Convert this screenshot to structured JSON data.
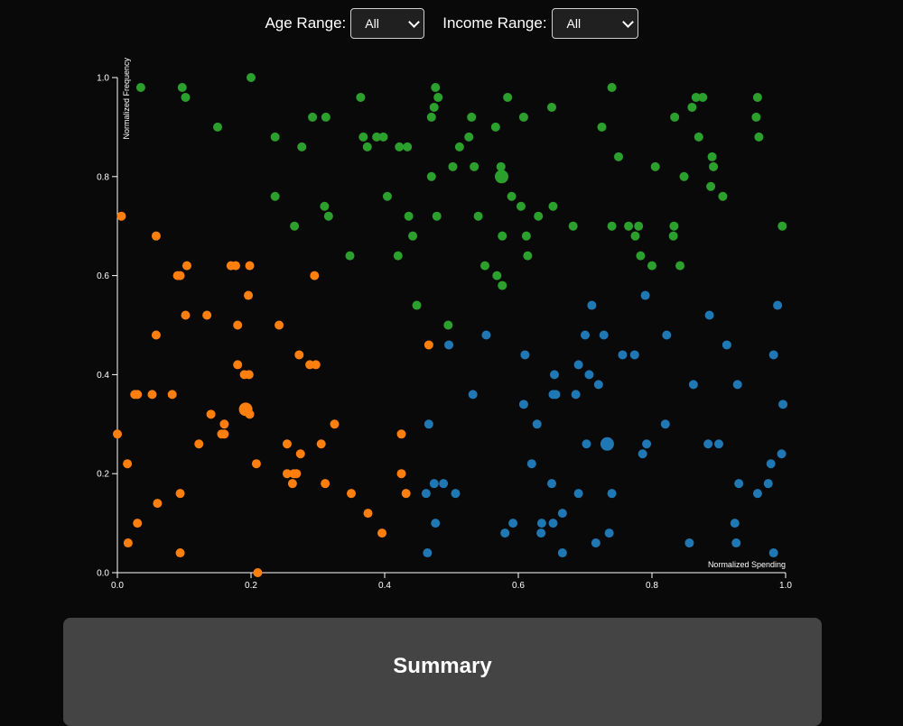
{
  "filters": {
    "age": {
      "label": "Age Range:",
      "selected": "All"
    },
    "income": {
      "label": "Income Range:",
      "selected": "All"
    }
  },
  "summary": {
    "title": "Summary"
  },
  "chart_data": {
    "type": "scatter",
    "xlabel": "Normalized Spending",
    "ylabel": "Normalized Frequency",
    "xlim": [
      0,
      1
    ],
    "ylim": [
      0,
      1
    ],
    "x_ticks": [
      "0.0",
      "0.2",
      "0.4",
      "0.6",
      "0.8",
      "1.0"
    ],
    "y_ticks": [
      "0.0",
      "0.2",
      "0.4",
      "0.6",
      "0.8",
      "1.0"
    ],
    "grid": false,
    "series": [
      {
        "color": "#2ca02c",
        "centroid": [
          0.575,
          0.8
        ],
        "points": [
          [
            0.035,
            0.98
          ],
          [
            0.097,
            0.98
          ],
          [
            0.102,
            0.96
          ],
          [
            0.2,
            1.0
          ],
          [
            0.15,
            0.9
          ],
          [
            0.236,
            0.88
          ],
          [
            0.276,
            0.86
          ],
          [
            0.292,
            0.92
          ],
          [
            0.312,
            0.92
          ],
          [
            0.364,
            0.96
          ],
          [
            0.368,
            0.88
          ],
          [
            0.374,
            0.86
          ],
          [
            0.388,
            0.88
          ],
          [
            0.398,
            0.88
          ],
          [
            0.422,
            0.86
          ],
          [
            0.434,
            0.86
          ],
          [
            0.47,
            0.92
          ],
          [
            0.474,
            0.94
          ],
          [
            0.48,
            0.96
          ],
          [
            0.476,
            0.98
          ],
          [
            0.53,
            0.92
          ],
          [
            0.526,
            0.88
          ],
          [
            0.512,
            0.86
          ],
          [
            0.566,
            0.9
          ],
          [
            0.584,
            0.96
          ],
          [
            0.608,
            0.92
          ],
          [
            0.65,
            0.94
          ],
          [
            0.725,
            0.9
          ],
          [
            0.74,
            0.98
          ],
          [
            0.75,
            0.84
          ],
          [
            0.236,
            0.76
          ],
          [
            0.265,
            0.7
          ],
          [
            0.31,
            0.74
          ],
          [
            0.316,
            0.72
          ],
          [
            0.404,
            0.76
          ],
          [
            0.436,
            0.72
          ],
          [
            0.442,
            0.68
          ],
          [
            0.47,
            0.8
          ],
          [
            0.478,
            0.72
          ],
          [
            0.502,
            0.82
          ],
          [
            0.534,
            0.82
          ],
          [
            0.54,
            0.72
          ],
          [
            0.574,
            0.82
          ],
          [
            0.59,
            0.76
          ],
          [
            0.604,
            0.74
          ],
          [
            0.612,
            0.68
          ],
          [
            0.576,
            0.68
          ],
          [
            0.63,
            0.72
          ],
          [
            0.652,
            0.74
          ],
          [
            0.682,
            0.7
          ],
          [
            0.74,
            0.7
          ],
          [
            0.765,
            0.7
          ],
          [
            0.78,
            0.7
          ],
          [
            0.775,
            0.68
          ],
          [
            0.805,
            0.82
          ],
          [
            0.834,
            0.92
          ],
          [
            0.848,
            0.8
          ],
          [
            0.86,
            0.94
          ],
          [
            0.866,
            0.96
          ],
          [
            0.876,
            0.96
          ],
          [
            0.87,
            0.88
          ],
          [
            0.89,
            0.84
          ],
          [
            0.892,
            0.82
          ],
          [
            0.888,
            0.78
          ],
          [
            0.906,
            0.76
          ],
          [
            0.958,
            0.96
          ],
          [
            0.956,
            0.92
          ],
          [
            0.96,
            0.88
          ],
          [
            0.995,
            0.7
          ],
          [
            0.833,
            0.7
          ],
          [
            0.832,
            0.68
          ],
          [
            0.783,
            0.64
          ],
          [
            0.8,
            0.62
          ],
          [
            0.842,
            0.62
          ],
          [
            0.348,
            0.64
          ],
          [
            0.42,
            0.64
          ],
          [
            0.614,
            0.64
          ],
          [
            0.55,
            0.62
          ],
          [
            0.568,
            0.6
          ],
          [
            0.576,
            0.58
          ],
          [
            0.448,
            0.54
          ],
          [
            0.495,
            0.5
          ]
        ]
      },
      {
        "color": "#ff7f0e",
        "centroid": [
          0.192,
          0.33
        ],
        "points": [
          [
            0.006,
            0.72
          ],
          [
            0.058,
            0.68
          ],
          [
            0.104,
            0.62
          ],
          [
            0.09,
            0.6
          ],
          [
            0.094,
            0.6
          ],
          [
            0.17,
            0.62
          ],
          [
            0.177,
            0.62
          ],
          [
            0.198,
            0.62
          ],
          [
            0.295,
            0.6
          ],
          [
            0.196,
            0.56
          ],
          [
            0.102,
            0.52
          ],
          [
            0.134,
            0.52
          ],
          [
            0.058,
            0.48
          ],
          [
            0.18,
            0.5
          ],
          [
            0.242,
            0.5
          ],
          [
            0.466,
            0.46
          ],
          [
            0.272,
            0.44
          ],
          [
            0.18,
            0.42
          ],
          [
            0.19,
            0.4
          ],
          [
            0.197,
            0.4
          ],
          [
            0.288,
            0.42
          ],
          [
            0.297,
            0.42
          ],
          [
            0.03,
            0.36
          ],
          [
            0.026,
            0.36
          ],
          [
            0.052,
            0.36
          ],
          [
            0.082,
            0.36
          ],
          [
            0.14,
            0.32
          ],
          [
            0.16,
            0.3
          ],
          [
            0.198,
            0.32
          ],
          [
            0.325,
            0.3
          ],
          [
            0.0,
            0.28
          ],
          [
            0.16,
            0.28
          ],
          [
            0.156,
            0.28
          ],
          [
            0.122,
            0.26
          ],
          [
            0.254,
            0.26
          ],
          [
            0.305,
            0.26
          ],
          [
            0.425,
            0.28
          ],
          [
            0.274,
            0.24
          ],
          [
            0.015,
            0.22
          ],
          [
            0.208,
            0.22
          ],
          [
            0.254,
            0.2
          ],
          [
            0.264,
            0.2
          ],
          [
            0.268,
            0.2
          ],
          [
            0.262,
            0.18
          ],
          [
            0.311,
            0.18
          ],
          [
            0.425,
            0.2
          ],
          [
            0.094,
            0.16
          ],
          [
            0.35,
            0.16
          ],
          [
            0.432,
            0.16
          ],
          [
            0.06,
            0.14
          ],
          [
            0.03,
            0.1
          ],
          [
            0.375,
            0.12
          ],
          [
            0.396,
            0.08
          ],
          [
            0.016,
            0.06
          ],
          [
            0.094,
            0.04
          ],
          [
            0.21,
            0.0
          ]
        ]
      },
      {
        "color": "#1f77b4",
        "centroid": [
          0.733,
          0.26
        ],
        "points": [
          [
            0.79,
            0.56
          ],
          [
            0.71,
            0.54
          ],
          [
            0.886,
            0.52
          ],
          [
            0.988,
            0.54
          ],
          [
            0.496,
            0.46
          ],
          [
            0.552,
            0.48
          ],
          [
            0.7,
            0.48
          ],
          [
            0.728,
            0.48
          ],
          [
            0.822,
            0.48
          ],
          [
            0.912,
            0.46
          ],
          [
            0.756,
            0.44
          ],
          [
            0.774,
            0.44
          ],
          [
            0.61,
            0.44
          ],
          [
            0.982,
            0.44
          ],
          [
            0.69,
            0.42
          ],
          [
            0.654,
            0.4
          ],
          [
            0.706,
            0.4
          ],
          [
            0.72,
            0.38
          ],
          [
            0.862,
            0.38
          ],
          [
            0.928,
            0.38
          ],
          [
            0.532,
            0.36
          ],
          [
            0.652,
            0.36
          ],
          [
            0.656,
            0.36
          ],
          [
            0.686,
            0.36
          ],
          [
            0.608,
            0.34
          ],
          [
            0.996,
            0.34
          ],
          [
            0.466,
            0.3
          ],
          [
            0.628,
            0.3
          ],
          [
            0.82,
            0.3
          ],
          [
            0.702,
            0.26
          ],
          [
            0.792,
            0.26
          ],
          [
            0.884,
            0.26
          ],
          [
            0.9,
            0.26
          ],
          [
            0.786,
            0.24
          ],
          [
            0.994,
            0.24
          ],
          [
            0.62,
            0.22
          ],
          [
            0.978,
            0.22
          ],
          [
            0.474,
            0.18
          ],
          [
            0.488,
            0.18
          ],
          [
            0.65,
            0.18
          ],
          [
            0.93,
            0.18
          ],
          [
            0.974,
            0.18
          ],
          [
            0.462,
            0.16
          ],
          [
            0.506,
            0.16
          ],
          [
            0.69,
            0.16
          ],
          [
            0.74,
            0.16
          ],
          [
            0.958,
            0.16
          ],
          [
            0.592,
            0.1
          ],
          [
            0.635,
            0.1
          ],
          [
            0.652,
            0.1
          ],
          [
            0.666,
            0.12
          ],
          [
            0.476,
            0.1
          ],
          [
            0.924,
            0.1
          ],
          [
            0.58,
            0.08
          ],
          [
            0.634,
            0.08
          ],
          [
            0.716,
            0.06
          ],
          [
            0.736,
            0.08
          ],
          [
            0.856,
            0.06
          ],
          [
            0.926,
            0.06
          ],
          [
            0.464,
            0.04
          ],
          [
            0.666,
            0.04
          ],
          [
            0.982,
            0.04
          ]
        ]
      }
    ]
  }
}
